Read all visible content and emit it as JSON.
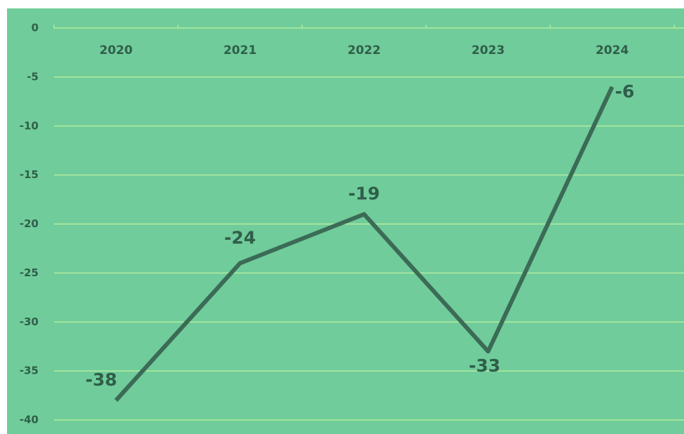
{
  "chart_data": {
    "type": "line",
    "categories": [
      "2020",
      "2021",
      "2022",
      "2023",
      "2024"
    ],
    "series": [
      {
        "name": "Series",
        "color": "#3b6b56",
        "values": [
          -38,
          -24,
          -19,
          -33,
          -6
        ]
      }
    ],
    "ylim": [
      -40,
      0
    ],
    "yticks": [
      0,
      -5,
      -10,
      -15,
      -20,
      -25,
      -30,
      -35,
      -40
    ],
    "grid": true,
    "background": "#70cc9a",
    "grid_color": "#b3ec9f"
  }
}
